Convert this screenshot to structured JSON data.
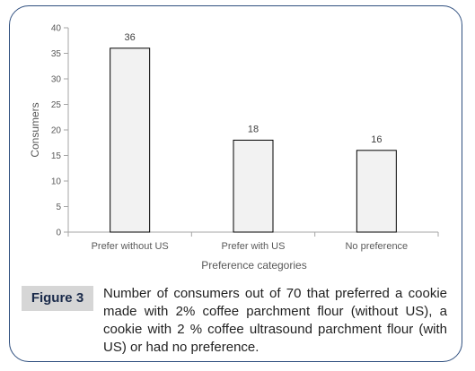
{
  "chart_data": {
    "type": "bar",
    "categories": [
      "Prefer without US",
      "Prefer with US",
      "No preference"
    ],
    "values": [
      36,
      18,
      16
    ],
    "data_labels": [
      "36",
      "18",
      "16"
    ],
    "xlabel": "Preference categories",
    "ylabel": "Consumers",
    "ylim": [
      0,
      40
    ],
    "yticks": [
      0,
      5,
      10,
      15,
      20,
      25,
      30,
      35,
      40
    ],
    "grid": false,
    "legend": "none",
    "bar_fill": "#f2f2f2",
    "bar_stroke": "#000000",
    "axis_color": "#a6a6a6"
  },
  "caption": {
    "label": "Figure 3",
    "text": "Number of consumers out of 70 that preferred a cookie made with 2% coffee parchment flour (without US), a cookie with 2 % coffee ultrasound parchment flour (with US) or had no preference."
  }
}
